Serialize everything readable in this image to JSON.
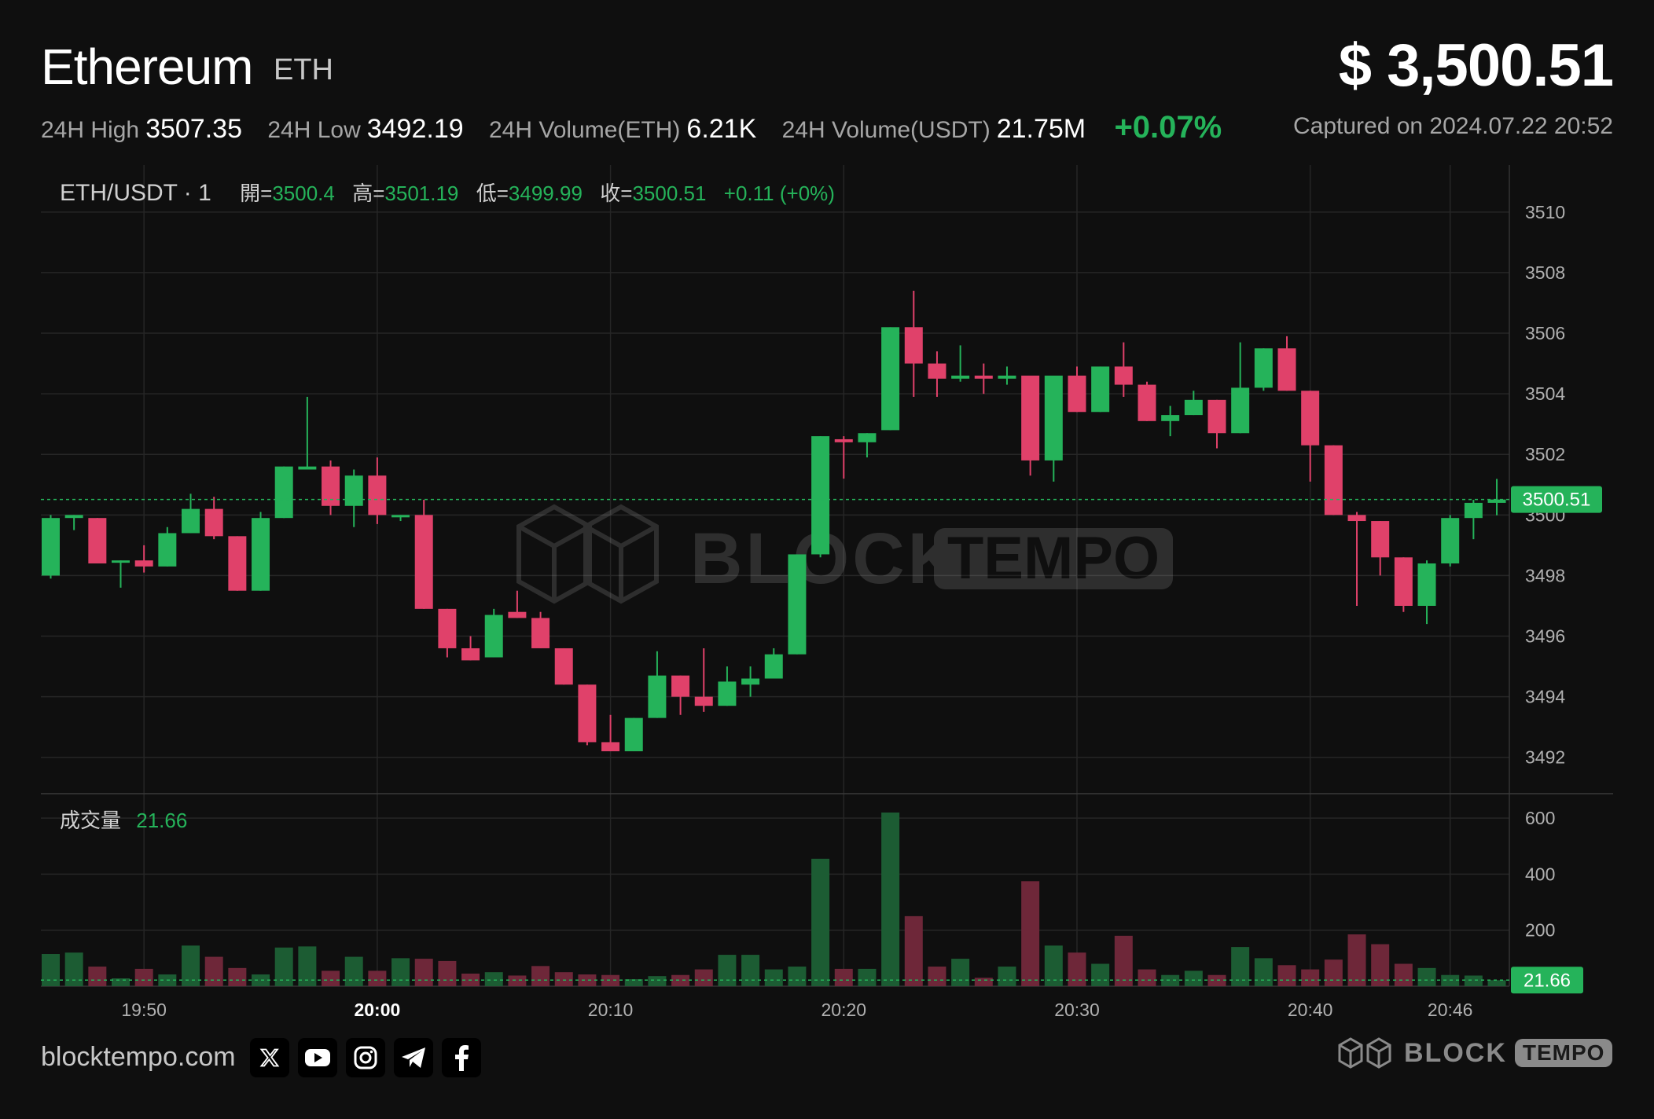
{
  "header": {
    "name": "Ethereum",
    "symbol": "ETH",
    "price": "$ 3,500.51",
    "captured": "Captured on 2024.07.22 20:52",
    "stats": [
      {
        "label": "24H High",
        "value": "3507.35"
      },
      {
        "label": "24H Low",
        "value": "3492.19"
      },
      {
        "label": "24H Volume(ETH)",
        "value": "6.21K"
      },
      {
        "label": "24H Volume(USDT)",
        "value": "21.75M"
      }
    ],
    "change": "+0.07%"
  },
  "legend": {
    "pair": "ETH/USDT · 1",
    "open_label": "開=",
    "open": "3500.4",
    "high_label": "高=",
    "high": "3501.19",
    "low_label": "低=",
    "low": "3499.99",
    "close_label": "收=",
    "close": "3500.51",
    "change": "+0.11 (+0%)"
  },
  "volume_legend": {
    "label": "成交量",
    "value": "21.66"
  },
  "last_price_tag": "3500.51",
  "last_volume_tag": "21.66",
  "watermark": {
    "block": "BLOCK",
    "tempo": "TEMPO"
  },
  "footer": {
    "site": "blocktempo.com",
    "social": [
      "x-icon",
      "youtube-icon",
      "instagram-icon",
      "telegram-icon",
      "facebook-icon"
    ],
    "logo_block": "BLOCK",
    "logo_tempo": "TEMPO"
  },
  "colors": {
    "up": "#25b35a",
    "down": "#e0416a",
    "background": "#0f0f0f",
    "grid": "#262626"
  },
  "chart_data": {
    "type": "candlestick",
    "interval": "1m",
    "ylim": [
      3490.8,
      3511.5
    ],
    "y_ticks": [
      3492,
      3494,
      3496,
      3498,
      3500,
      3502,
      3504,
      3506,
      3508,
      3510
    ],
    "x_ticks": [
      {
        "index": 4,
        "label": "19:50",
        "bold": false
      },
      {
        "index": 14,
        "label": "20:00",
        "bold": true
      },
      {
        "index": 24,
        "label": "20:10",
        "bold": false
      },
      {
        "index": 34,
        "label": "20:20",
        "bold": false
      },
      {
        "index": 44,
        "label": "20:30",
        "bold": false
      },
      {
        "index": 54,
        "label": "20:40",
        "bold": false
      },
      {
        "index": 60,
        "label": "20:46",
        "bold": false
      }
    ],
    "volume_ylim": [
      0,
      620
    ],
    "volume_ticks": [
      200,
      400,
      600
    ],
    "candles": [
      {
        "o": 3498.0,
        "h": 3500.0,
        "l": 3497.9,
        "c": 3499.9,
        "v": 115
      },
      {
        "o": 3499.9,
        "h": 3500.0,
        "l": 3499.5,
        "c": 3500.0,
        "v": 120
      },
      {
        "o": 3499.9,
        "h": 3499.9,
        "l": 3498.4,
        "c": 3498.4,
        "v": 70
      },
      {
        "o": 3498.5,
        "h": 3498.5,
        "l": 3497.6,
        "c": 3498.5,
        "v": 28
      },
      {
        "o": 3498.5,
        "h": 3499.0,
        "l": 3498.1,
        "c": 3498.3,
        "v": 62
      },
      {
        "o": 3498.3,
        "h": 3499.6,
        "l": 3498.3,
        "c": 3499.4,
        "v": 42
      },
      {
        "o": 3499.4,
        "h": 3500.7,
        "l": 3499.4,
        "c": 3500.2,
        "v": 145
      },
      {
        "o": 3500.2,
        "h": 3500.6,
        "l": 3499.2,
        "c": 3499.3,
        "v": 105
      },
      {
        "o": 3499.3,
        "h": 3499.3,
        "l": 3497.5,
        "c": 3497.5,
        "v": 65
      },
      {
        "o": 3497.5,
        "h": 3500.1,
        "l": 3497.5,
        "c": 3499.9,
        "v": 42
      },
      {
        "o": 3499.9,
        "h": 3501.6,
        "l": 3499.9,
        "c": 3501.6,
        "v": 138
      },
      {
        "o": 3501.5,
        "h": 3503.9,
        "l": 3501.5,
        "c": 3501.6,
        "v": 142
      },
      {
        "o": 3501.6,
        "h": 3501.8,
        "l": 3500.0,
        "c": 3500.3,
        "v": 55
      },
      {
        "o": 3500.3,
        "h": 3501.5,
        "l": 3499.6,
        "c": 3501.3,
        "v": 105
      },
      {
        "o": 3501.3,
        "h": 3501.9,
        "l": 3499.7,
        "c": 3500.0,
        "v": 55
      },
      {
        "o": 3500.0,
        "h": 3500.0,
        "l": 3499.8,
        "c": 3500.0,
        "v": 100
      },
      {
        "o": 3500.0,
        "h": 3500.5,
        "l": 3496.9,
        "c": 3496.9,
        "v": 98
      },
      {
        "o": 3496.9,
        "h": 3496.9,
        "l": 3495.3,
        "c": 3495.6,
        "v": 90
      },
      {
        "o": 3495.6,
        "h": 3496.0,
        "l": 3495.2,
        "c": 3495.2,
        "v": 45
      },
      {
        "o": 3495.3,
        "h": 3496.9,
        "l": 3495.3,
        "c": 3496.7,
        "v": 50
      },
      {
        "o": 3496.8,
        "h": 3497.5,
        "l": 3496.6,
        "c": 3496.6,
        "v": 38
      },
      {
        "o": 3496.6,
        "h": 3496.8,
        "l": 3495.6,
        "c": 3495.6,
        "v": 72
      },
      {
        "o": 3495.6,
        "h": 3495.6,
        "l": 3494.4,
        "c": 3494.4,
        "v": 50
      },
      {
        "o": 3494.4,
        "h": 3494.4,
        "l": 3492.4,
        "c": 3492.5,
        "v": 42
      },
      {
        "o": 3492.5,
        "h": 3493.4,
        "l": 3492.2,
        "c": 3492.2,
        "v": 40
      },
      {
        "o": 3492.2,
        "h": 3493.3,
        "l": 3492.2,
        "c": 3493.3,
        "v": 25
      },
      {
        "o": 3493.3,
        "h": 3495.5,
        "l": 3493.3,
        "c": 3494.7,
        "v": 36
      },
      {
        "o": 3494.7,
        "h": 3494.7,
        "l": 3493.4,
        "c": 3494.0,
        "v": 40
      },
      {
        "o": 3494.0,
        "h": 3495.6,
        "l": 3493.5,
        "c": 3493.7,
        "v": 60
      },
      {
        "o": 3493.7,
        "h": 3495.0,
        "l": 3493.7,
        "c": 3494.5,
        "v": 112
      },
      {
        "o": 3494.4,
        "h": 3495.0,
        "l": 3494.0,
        "c": 3494.6,
        "v": 112
      },
      {
        "o": 3494.6,
        "h": 3495.6,
        "l": 3494.6,
        "c": 3495.4,
        "v": 60
      },
      {
        "o": 3495.4,
        "h": 3498.7,
        "l": 3495.4,
        "c": 3498.7,
        "v": 70
      },
      {
        "o": 3498.7,
        "h": 3502.6,
        "l": 3498.6,
        "c": 3502.6,
        "v": 455
      },
      {
        "o": 3502.5,
        "h": 3502.6,
        "l": 3501.2,
        "c": 3502.4,
        "v": 62
      },
      {
        "o": 3502.4,
        "h": 3502.7,
        "l": 3501.9,
        "c": 3502.7,
        "v": 62
      },
      {
        "o": 3502.8,
        "h": 3506.2,
        "l": 3502.8,
        "c": 3506.2,
        "v": 620
      },
      {
        "o": 3506.2,
        "h": 3507.4,
        "l": 3503.9,
        "c": 3505.0,
        "v": 250
      },
      {
        "o": 3505.0,
        "h": 3505.4,
        "l": 3503.9,
        "c": 3504.5,
        "v": 70
      },
      {
        "o": 3504.5,
        "h": 3505.6,
        "l": 3504.4,
        "c": 3504.6,
        "v": 98
      },
      {
        "o": 3504.6,
        "h": 3505.0,
        "l": 3504.0,
        "c": 3504.5,
        "v": 30
      },
      {
        "o": 3504.5,
        "h": 3504.9,
        "l": 3504.3,
        "c": 3504.6,
        "v": 70
      },
      {
        "o": 3504.6,
        "h": 3504.6,
        "l": 3501.3,
        "c": 3501.8,
        "v": 375
      },
      {
        "o": 3501.8,
        "h": 3504.6,
        "l": 3501.1,
        "c": 3504.6,
        "v": 145
      },
      {
        "o": 3504.6,
        "h": 3504.9,
        "l": 3503.4,
        "c": 3503.4,
        "v": 120
      },
      {
        "o": 3503.4,
        "h": 3504.9,
        "l": 3503.4,
        "c": 3504.9,
        "v": 80
      },
      {
        "o": 3504.9,
        "h": 3505.7,
        "l": 3503.9,
        "c": 3504.3,
        "v": 180
      },
      {
        "o": 3504.3,
        "h": 3504.4,
        "l": 3503.1,
        "c": 3503.1,
        "v": 60
      },
      {
        "o": 3503.1,
        "h": 3503.6,
        "l": 3502.6,
        "c": 3503.3,
        "v": 40
      },
      {
        "o": 3503.3,
        "h": 3504.1,
        "l": 3503.3,
        "c": 3503.8,
        "v": 55
      },
      {
        "o": 3503.8,
        "h": 3503.8,
        "l": 3502.2,
        "c": 3502.7,
        "v": 40
      },
      {
        "o": 3502.7,
        "h": 3505.7,
        "l": 3502.7,
        "c": 3504.2,
        "v": 140
      },
      {
        "o": 3504.2,
        "h": 3505.5,
        "l": 3504.1,
        "c": 3505.5,
        "v": 100
      },
      {
        "o": 3505.5,
        "h": 3505.9,
        "l": 3504.1,
        "c": 3504.1,
        "v": 75
      },
      {
        "o": 3504.1,
        "h": 3504.1,
        "l": 3501.1,
        "c": 3502.3,
        "v": 60
      },
      {
        "o": 3502.3,
        "h": 3502.3,
        "l": 3500.0,
        "c": 3500.0,
        "v": 95
      },
      {
        "o": 3500.0,
        "h": 3500.1,
        "l": 3497.0,
        "c": 3499.8,
        "v": 185
      },
      {
        "o": 3499.8,
        "h": 3499.8,
        "l": 3498.0,
        "c": 3498.6,
        "v": 150
      },
      {
        "o": 3498.6,
        "h": 3498.6,
        "l": 3496.8,
        "c": 3497.0,
        "v": 80
      },
      {
        "o": 3497.0,
        "h": 3498.5,
        "l": 3496.4,
        "c": 3498.4,
        "v": 65
      },
      {
        "o": 3498.4,
        "h": 3500.0,
        "l": 3498.3,
        "c": 3499.9,
        "v": 40
      },
      {
        "o": 3499.9,
        "h": 3500.5,
        "l": 3499.2,
        "c": 3500.4,
        "v": 38
      },
      {
        "o": 3500.4,
        "h": 3501.19,
        "l": 3499.99,
        "c": 3500.51,
        "v": 21.66
      }
    ]
  }
}
